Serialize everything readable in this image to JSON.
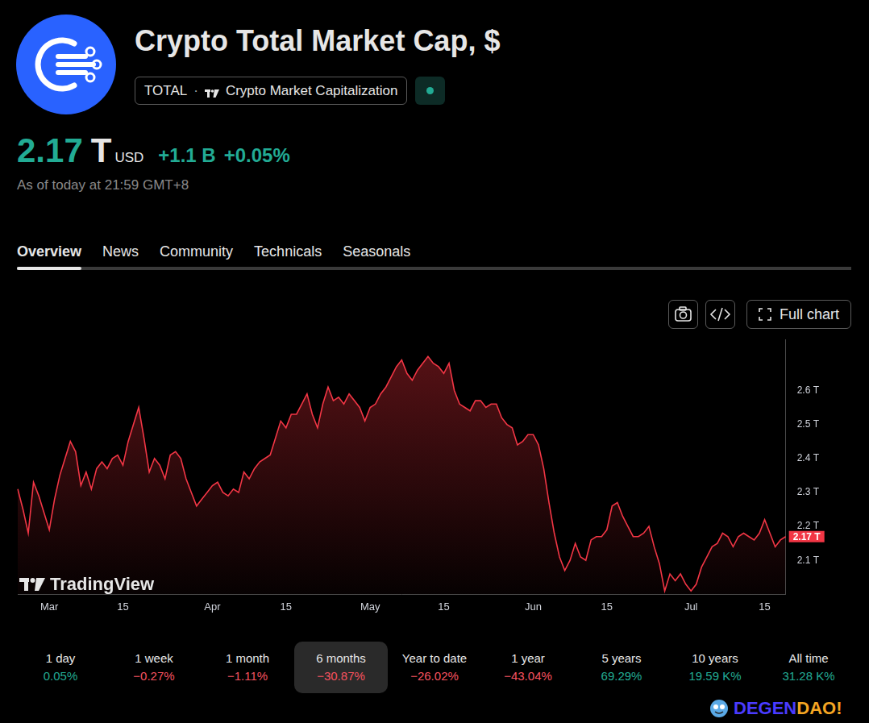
{
  "header": {
    "title": "Crypto Total Market Cap, $",
    "symbol": "TOTAL",
    "separator": "·",
    "symbol_name": "Crypto Market Capitalization",
    "price": "2.17",
    "price_unit": "T",
    "currency": "USD",
    "change": "+1.1 B",
    "change_pct": "+0.05%",
    "timestamp": "As of today at 21:59 GMT+8"
  },
  "tabs": [
    "Overview",
    "News",
    "Community",
    "Technicals",
    "Seasonals"
  ],
  "active_tab": "Overview",
  "buttons": [
    "Full chart"
  ],
  "watermark": "TradingView",
  "badge_parts": [
    "DEGEN",
    "DAO!"
  ],
  "selected_period": "6 months",
  "performance": [
    {
      "label": "1 day",
      "value": "0.05%",
      "color": "#22ab94"
    },
    {
      "label": "1 week",
      "value": "−0.27%",
      "color": "#f7525f"
    },
    {
      "label": "1 month",
      "value": "−1.11%",
      "color": "#f7525f"
    },
    {
      "label": "6 months",
      "value": "−30.87%",
      "color": "#f7525f"
    },
    {
      "label": "Year to date",
      "value": "−26.02%",
      "color": "#f7525f"
    },
    {
      "label": "1 year",
      "value": "−43.04%",
      "color": "#f7525f"
    },
    {
      "label": "5 years",
      "value": "69.29%",
      "color": "#22ab94"
    },
    {
      "label": "10 years",
      "value": "19.59 K%",
      "color": "#22ab94"
    },
    {
      "label": "All time",
      "value": "31.28 K%",
      "color": "#22ab94"
    }
  ],
  "chart_data": {
    "type": "line",
    "color": "#f23645",
    "grid": false,
    "categories": [
      null,
      null,
      null,
      null,
      null,
      null,
      "Mar",
      null,
      null,
      null,
      null,
      null,
      null,
      null,
      null,
      null,
      null,
      null,
      null,
      null,
      "15",
      null,
      null,
      null,
      null,
      null,
      null,
      null,
      null,
      null,
      null,
      null,
      null,
      null,
      null,
      null,
      null,
      "Apr",
      null,
      null,
      null,
      null,
      null,
      null,
      null,
      null,
      null,
      null,
      null,
      null,
      null,
      "15",
      null,
      null,
      null,
      null,
      null,
      null,
      null,
      null,
      null,
      null,
      null,
      null,
      null,
      null,
      null,
      "May",
      null,
      null,
      null,
      null,
      null,
      null,
      null,
      null,
      null,
      null,
      null,
      null,
      null,
      "15",
      null,
      null,
      null,
      null,
      null,
      null,
      null,
      null,
      null,
      null,
      null,
      null,
      null,
      null,
      null,
      null,
      "Jun",
      null,
      null,
      null,
      null,
      null,
      null,
      null,
      null,
      null,
      null,
      null,
      null,
      null,
      "15",
      null,
      null,
      null,
      null,
      null,
      null,
      null,
      null,
      null,
      null,
      null,
      null,
      null,
      null,
      null,
      "Jul",
      null,
      null,
      null,
      null,
      null,
      null,
      null,
      null,
      null,
      null,
      null,
      null,
      null,
      "15",
      null,
      null,
      null,
      null
    ],
    "values": [
      2.31,
      2.25,
      2.18,
      2.33,
      2.29,
      2.24,
      2.19,
      2.28,
      2.35,
      2.4,
      2.45,
      2.42,
      2.32,
      2.36,
      2.31,
      2.37,
      2.39,
      2.37,
      2.4,
      2.41,
      2.38,
      2.45,
      2.5,
      2.55,
      2.46,
      2.36,
      2.4,
      2.38,
      2.34,
      2.41,
      2.42,
      2.4,
      2.34,
      2.3,
      2.26,
      2.28,
      2.3,
      2.32,
      2.33,
      2.3,
      2.29,
      2.31,
      2.3,
      2.36,
      2.34,
      2.37,
      2.39,
      2.4,
      2.41,
      2.46,
      2.51,
      2.49,
      2.53,
      2.53,
      2.56,
      2.59,
      2.53,
      2.49,
      2.56,
      2.61,
      2.57,
      2.58,
      2.56,
      2.59,
      2.57,
      2.55,
      2.51,
      2.55,
      2.56,
      2.59,
      2.61,
      2.64,
      2.67,
      2.69,
      2.65,
      2.63,
      2.66,
      2.68,
      2.7,
      2.68,
      2.67,
      2.65,
      2.68,
      2.6,
      2.56,
      2.55,
      2.54,
      2.57,
      2.57,
      2.55,
      2.56,
      2.56,
      2.52,
      2.5,
      2.49,
      2.44,
      2.45,
      2.47,
      2.47,
      2.44,
      2.37,
      2.27,
      2.18,
      2.11,
      2.07,
      2.1,
      2.15,
      2.11,
      2.1,
      2.16,
      2.17,
      2.17,
      2.19,
      2.26,
      2.27,
      2.23,
      2.2,
      2.17,
      2.17,
      2.18,
      2.2,
      2.14,
      2.09,
      2.01,
      2.06,
      2.04,
      2.06,
      2.03,
      2.01,
      2.03,
      2.08,
      2.11,
      2.14,
      2.15,
      2.18,
      2.17,
      2.14,
      2.17,
      2.18,
      2.17,
      2.16,
      2.18,
      2.22,
      2.18,
      2.14,
      2.16,
      2.17
    ],
    "ylim": [
      2.0,
      2.75
    ],
    "yticks": [
      {
        "value": 2.1,
        "label": "2.1 T"
      },
      {
        "value": 2.2,
        "label": "2.2 T"
      },
      {
        "value": 2.3,
        "label": "2.3 T"
      },
      {
        "value": 2.4,
        "label": "2.4 T"
      },
      {
        "value": 2.5,
        "label": "2.5 T"
      },
      {
        "value": 2.6,
        "label": "2.6 T"
      }
    ],
    "annotations": [
      {
        "text": "2.17 T",
        "y": 2.17
      }
    ]
  }
}
